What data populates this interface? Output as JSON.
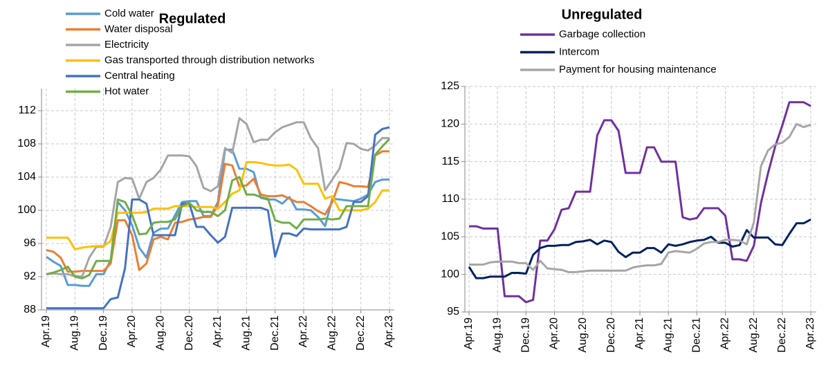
{
  "chart_data": [
    {
      "type": "line",
      "title": "Regulated",
      "categories": [
        "Apr.19",
        null,
        null,
        null,
        "Aug.19",
        null,
        null,
        null,
        "Dec.19",
        null,
        null,
        null,
        "Apr.20",
        null,
        null,
        null,
        "Aug.20",
        null,
        null,
        null,
        "Dec.20",
        null,
        null,
        null,
        "Apr.21",
        null,
        null,
        null,
        "Aug.21",
        null,
        null,
        null,
        "Dec.21",
        null,
        null,
        null,
        "Apr.22",
        null,
        null,
        null,
        "Aug.22",
        null,
        null,
        null,
        "Dec.22",
        null,
        null,
        null,
        "Apr.23"
      ],
      "ylim": [
        88,
        112
      ],
      "yticks": [
        88,
        92,
        96,
        100,
        104,
        108,
        112
      ],
      "grid": true,
      "legend": "upper left",
      "series": [
        {
          "name": "Cold water",
          "color": "#5b9bd5",
          "values": [
            94.4,
            93.8,
            93.3,
            91.0,
            91.0,
            90.9,
            90.9,
            92.3,
            92.3,
            94.0,
            101.0,
            100.0,
            98.2,
            95.5,
            94.3,
            97.3,
            97.8,
            97.8,
            99.4,
            101.0,
            101.1,
            101.1,
            99.3,
            99.3,
            101.0,
            107.3,
            107.3,
            105.0,
            105.0,
            104.6,
            101.5,
            101.3,
            101.3,
            100.8,
            101.6,
            100.1,
            100.1,
            100.0,
            99.2,
            98.1,
            101.4,
            101.3,
            101.2,
            101.1,
            101.4,
            101.9,
            103.4,
            103.7,
            103.7
          ]
        },
        {
          "name": "Water disposal",
          "color": "#ed7d31",
          "values": [
            95.2,
            95.0,
            94.3,
            92.6,
            92.6,
            92.7,
            92.7,
            92.7,
            92.7,
            93.6,
            98.8,
            98.8,
            97.0,
            92.8,
            93.6,
            96.5,
            96.8,
            96.5,
            98.5,
            98.6,
            98.9,
            99.0,
            99.2,
            99.2,
            100.6,
            105.6,
            105.4,
            102.9,
            103.0,
            103.8,
            101.9,
            101.7,
            101.7,
            101.8,
            101.4,
            101.0,
            101.0,
            100.5,
            99.9,
            99.5,
            101.0,
            103.4,
            103.2,
            102.9,
            102.9,
            102.8,
            106.6,
            107.1,
            107.1
          ]
        },
        {
          "name": "Electricity",
          "color": "#a5a5a5",
          "values": [
            92.3,
            92.4,
            92.3,
            92.3,
            92.1,
            92.0,
            94.3,
            95.6,
            95.6,
            98.0,
            103.4,
            103.9,
            103.8,
            101.4,
            103.4,
            103.9,
            104.9,
            106.6,
            106.6,
            106.6,
            106.5,
            105.3,
            102.7,
            102.3,
            102.9,
            107.5,
            106.9,
            111.1,
            110.4,
            108.2,
            108.5,
            108.5,
            109.4,
            110.0,
            110.3,
            110.6,
            110.6,
            108.7,
            107.5,
            102.4,
            103.7,
            105.0,
            108.1,
            108.0,
            107.4,
            107.2,
            107.8,
            108.7,
            108.7
          ]
        },
        {
          "name": "Gas transported through distribution networks",
          "color": "#ffc000",
          "values": [
            96.7,
            96.7,
            96.7,
            96.7,
            95.3,
            95.5,
            95.6,
            95.7,
            95.7,
            96.3,
            99.7,
            99.7,
            99.7,
            99.7,
            99.8,
            100.2,
            100.2,
            100.2,
            100.5,
            100.5,
            100.5,
            100.4,
            100.4,
            100.4,
            100.2,
            101.0,
            102.0,
            102.4,
            105.8,
            105.8,
            105.7,
            105.5,
            105.4,
            105.4,
            105.5,
            104.9,
            103.2,
            103.2,
            103.2,
            101.4,
            101.7,
            100.0,
            100.0,
            100.0,
            100.0,
            100.2,
            101.0,
            102.4,
            102.4
          ]
        },
        {
          "name": "Central heating",
          "color": "#4472c4",
          "values": [
            88.2,
            88.2,
            88.2,
            88.2,
            88.2,
            88.2,
            88.2,
            88.2,
            88.2,
            89.3,
            89.5,
            93.0,
            101.3,
            101.3,
            100.8,
            97.0,
            97.0,
            97.0,
            97.0,
            100.8,
            100.8,
            98.0,
            98.0,
            97.0,
            96.1,
            96.8,
            100.3,
            100.3,
            100.3,
            100.3,
            100.3,
            100.0,
            94.4,
            97.2,
            97.2,
            96.9,
            97.8,
            97.7,
            97.7,
            97.7,
            97.7,
            97.7,
            98.0,
            101.0,
            101.0,
            101.7,
            109.1,
            109.8,
            110.0
          ]
        },
        {
          "name": "Hot water",
          "color": "#70ad47",
          "values": [
            92.3,
            92.5,
            92.8,
            93.2,
            92.0,
            91.8,
            92.2,
            93.9,
            93.9,
            93.9,
            101.3,
            101.0,
            99.4,
            97.1,
            97.2,
            98.5,
            98.6,
            98.6,
            98.9,
            100.5,
            100.9,
            100.0,
            99.8,
            99.8,
            99.3,
            100.0,
            103.6,
            104.0,
            101.9,
            101.9,
            101.6,
            101.4,
            98.8,
            98.5,
            98.5,
            97.8,
            98.9,
            98.9,
            98.9,
            99.0,
            98.9,
            99.0,
            100.5,
            100.5,
            100.5,
            100.5,
            106.7,
            107.7,
            108.6
          ]
        }
      ]
    },
    {
      "type": "line",
      "title": "Unregulated",
      "categories": [
        "Apr.19",
        null,
        null,
        null,
        "Aug.19",
        null,
        null,
        null,
        "Dec.19",
        null,
        null,
        null,
        "Apr.20",
        null,
        null,
        null,
        "Aug.20",
        null,
        null,
        null,
        "Dec.20",
        null,
        null,
        null,
        "Apr.21",
        null,
        null,
        null,
        "Aug.21",
        null,
        null,
        null,
        "Dec.21",
        null,
        null,
        null,
        "Apr.22",
        null,
        null,
        null,
        "Aug.22",
        null,
        null,
        null,
        "Dec.22",
        null,
        null,
        null,
        "Apr.23"
      ],
      "ylim": [
        95,
        125
      ],
      "yticks": [
        95,
        100,
        105,
        110,
        115,
        120,
        125
      ],
      "grid": true,
      "legend": "upper left",
      "series": [
        {
          "name": "Garbage collection",
          "color": "#7030a0",
          "values": [
            106.4,
            106.4,
            106.1,
            106.1,
            106.1,
            97.1,
            97.1,
            97.1,
            96.3,
            96.6,
            104.5,
            104.5,
            106.0,
            108.6,
            108.8,
            111.0,
            111.0,
            111.0,
            118.5,
            120.5,
            120.5,
            119.1,
            113.5,
            113.5,
            113.5,
            116.9,
            116.9,
            115.0,
            115.0,
            115.0,
            107.6,
            107.3,
            107.5,
            108.8,
            108.8,
            108.8,
            107.8,
            102.0,
            102.0,
            101.8,
            103.8,
            109.5,
            113.5,
            117.0,
            119.8,
            122.9,
            122.9,
            122.9,
            122.4
          ]
        },
        {
          "name": "Intercom",
          "color": "#002060",
          "values": [
            101.0,
            99.5,
            99.5,
            99.7,
            99.7,
            99.7,
            100.2,
            100.2,
            100.1,
            102.6,
            103.5,
            103.8,
            103.8,
            103.9,
            103.9,
            104.3,
            104.4,
            104.6,
            104.0,
            104.5,
            104.3,
            103.0,
            102.3,
            102.9,
            102.9,
            103.5,
            103.5,
            102.9,
            104.0,
            103.8,
            104.0,
            104.3,
            104.5,
            104.6,
            105.0,
            104.2,
            104.2,
            103.7,
            103.9,
            105.9,
            104.9,
            104.9,
            104.9,
            104.0,
            103.9,
            105.4,
            106.8,
            106.8,
            107.3
          ]
        },
        {
          "name": "Payment for housing maintenance",
          "color": "#a6a6a6",
          "values": [
            101.3,
            101.3,
            101.3,
            101.6,
            101.7,
            101.7,
            101.7,
            101.5,
            101.5,
            100.6,
            101.8,
            100.8,
            100.7,
            100.6,
            100.3,
            100.3,
            100.4,
            100.5,
            100.5,
            100.5,
            100.5,
            100.5,
            100.5,
            100.9,
            101.1,
            101.2,
            101.2,
            101.4,
            102.9,
            103.1,
            103.0,
            102.9,
            103.4,
            104.1,
            104.3,
            104.3,
            104.6,
            104.6,
            104.5,
            104.0,
            106.9,
            114.4,
            116.5,
            117.3,
            117.5,
            118.3,
            120.0,
            119.6,
            119.9
          ]
        }
      ]
    }
  ]
}
